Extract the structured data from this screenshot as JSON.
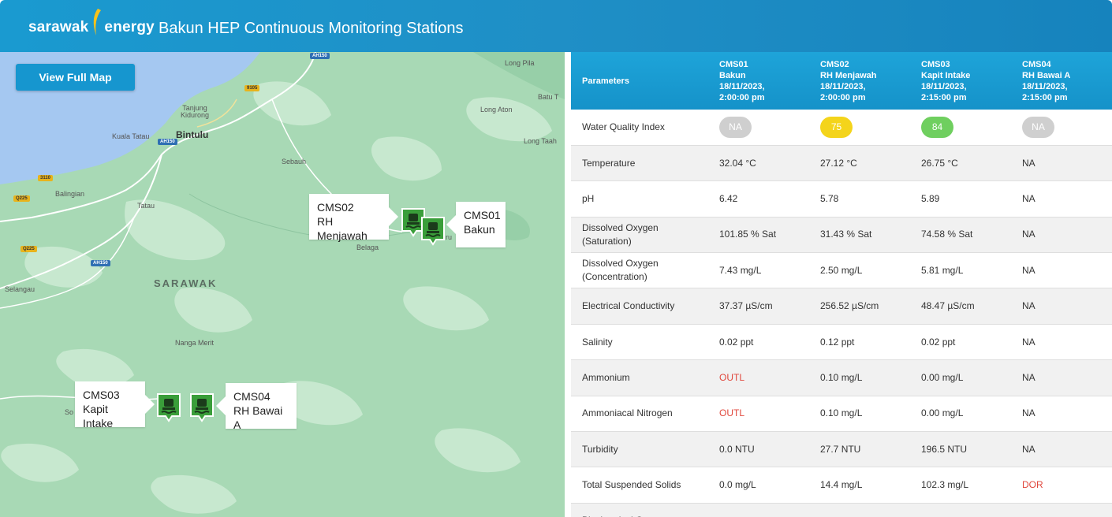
{
  "header": {
    "logo_left": "sarawak",
    "logo_right": "energy",
    "title": "Bakun HEP Continuous Monitoring Stations"
  },
  "map": {
    "view_full_map_label": "View Full Map",
    "places": {
      "long_pila": "Long Pila",
      "batu_t": "Batu T",
      "long_aton": "Long Aton",
      "long_taah": "Long Taah",
      "tanjung_kidurong": "Tanjung\nKidurong",
      "bintulu": "Bintulu",
      "kuala_tatau": "Kuala Tatau",
      "sebauh": "Sebauh",
      "balingian": "Balingian",
      "tatau": "Tatau",
      "belaga": "Belaga",
      "sarawak": "SARAWAK",
      "selangau": "Selangau",
      "nanga_merit": "Nanga Merit",
      "so": "So",
      "ru": "ru"
    },
    "road_shields": {
      "ah150_top": "AH150",
      "r9105": "9105",
      "ah150_mid": "AH150",
      "r3110": "3110",
      "q225a": "Q225",
      "q225b": "Q225",
      "ah150_low": "AH150"
    },
    "stations": [
      {
        "code": "CMS02",
        "name": "RH Menjawah"
      },
      {
        "code": "CMS01",
        "name": "Bakun"
      },
      {
        "code": "CMS03",
        "name": "Kapit Intake"
      },
      {
        "code": "CMS04",
        "name": "RH Bawai A"
      }
    ],
    "marker_icon": "water-station-icon"
  },
  "table": {
    "header_param": "Parameters",
    "columns": [
      {
        "code": "CMS01",
        "name": "Bakun",
        "date": "18/11/2023,",
        "time": "2:00:00 pm"
      },
      {
        "code": "CMS02",
        "name": "RH Menjawah",
        "date": "18/11/2023,",
        "time": "2:00:00 pm"
      },
      {
        "code": "CMS03",
        "name": "Kapit Intake",
        "date": "18/11/2023,",
        "time": "2:15:00 pm"
      },
      {
        "code": "CMS04",
        "name": "RH Bawai A",
        "date": "18/11/2023,",
        "time": "2:15:00 pm"
      }
    ],
    "wqi": {
      "label": "Water Quality Index",
      "values": [
        "NA",
        "75",
        "84",
        "NA"
      ]
    },
    "rows": [
      {
        "label": "Temperature",
        "values": [
          "32.04 °C",
          "27.12 °C",
          "26.75 °C",
          "NA"
        ]
      },
      {
        "label": "pH",
        "values": [
          "6.42",
          "5.78",
          "5.89",
          "NA"
        ]
      },
      {
        "label": "Dissolved Oxygen\n(Saturation)",
        "values": [
          "101.85 % Sat",
          "31.43 % Sat",
          "74.58 % Sat",
          "NA"
        ]
      },
      {
        "label": "Dissolved Oxygen\n(Concentration)",
        "values": [
          "7.43 mg/L",
          "2.50 mg/L",
          "5.81 mg/L",
          "NA"
        ]
      },
      {
        "label": "Electrical Conductivity",
        "values": [
          "37.37 µS/cm",
          "256.52 µS/cm",
          "48.47 µS/cm",
          "NA"
        ]
      },
      {
        "label": "Salinity",
        "values": [
          "0.02 ppt",
          "0.12 ppt",
          "0.02 ppt",
          "NA"
        ]
      },
      {
        "label": "Ammonium",
        "values": [
          "OUTL",
          "0.10 mg/L",
          "0.00 mg/L",
          "NA"
        ]
      },
      {
        "label": "Ammoniacal Nitrogen",
        "values": [
          "OUTL",
          "0.10 mg/L",
          "0.00 mg/L",
          "NA"
        ]
      },
      {
        "label": "Turbidity",
        "values": [
          "0.0 NTU",
          "27.7 NTU",
          "196.5 NTU",
          "NA"
        ]
      },
      {
        "label": "Total Suspended Solids",
        "values": [
          "0.0 mg/L",
          "14.4 mg/L",
          "102.3 mg/L",
          "DOR"
        ]
      },
      {
        "label": "Biochemical Oxygen",
        "values": [
          "",
          "",
          "",
          ""
        ]
      }
    ]
  }
}
